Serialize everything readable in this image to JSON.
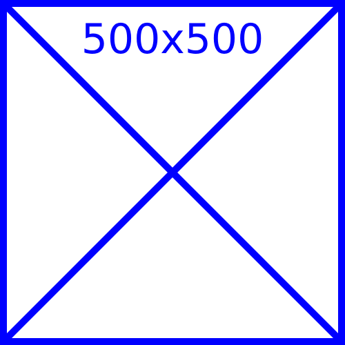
{
  "placeholder": {
    "dimension_text": "500x500",
    "stroke_color": "#0000ff",
    "background_color": "#ffffff"
  }
}
